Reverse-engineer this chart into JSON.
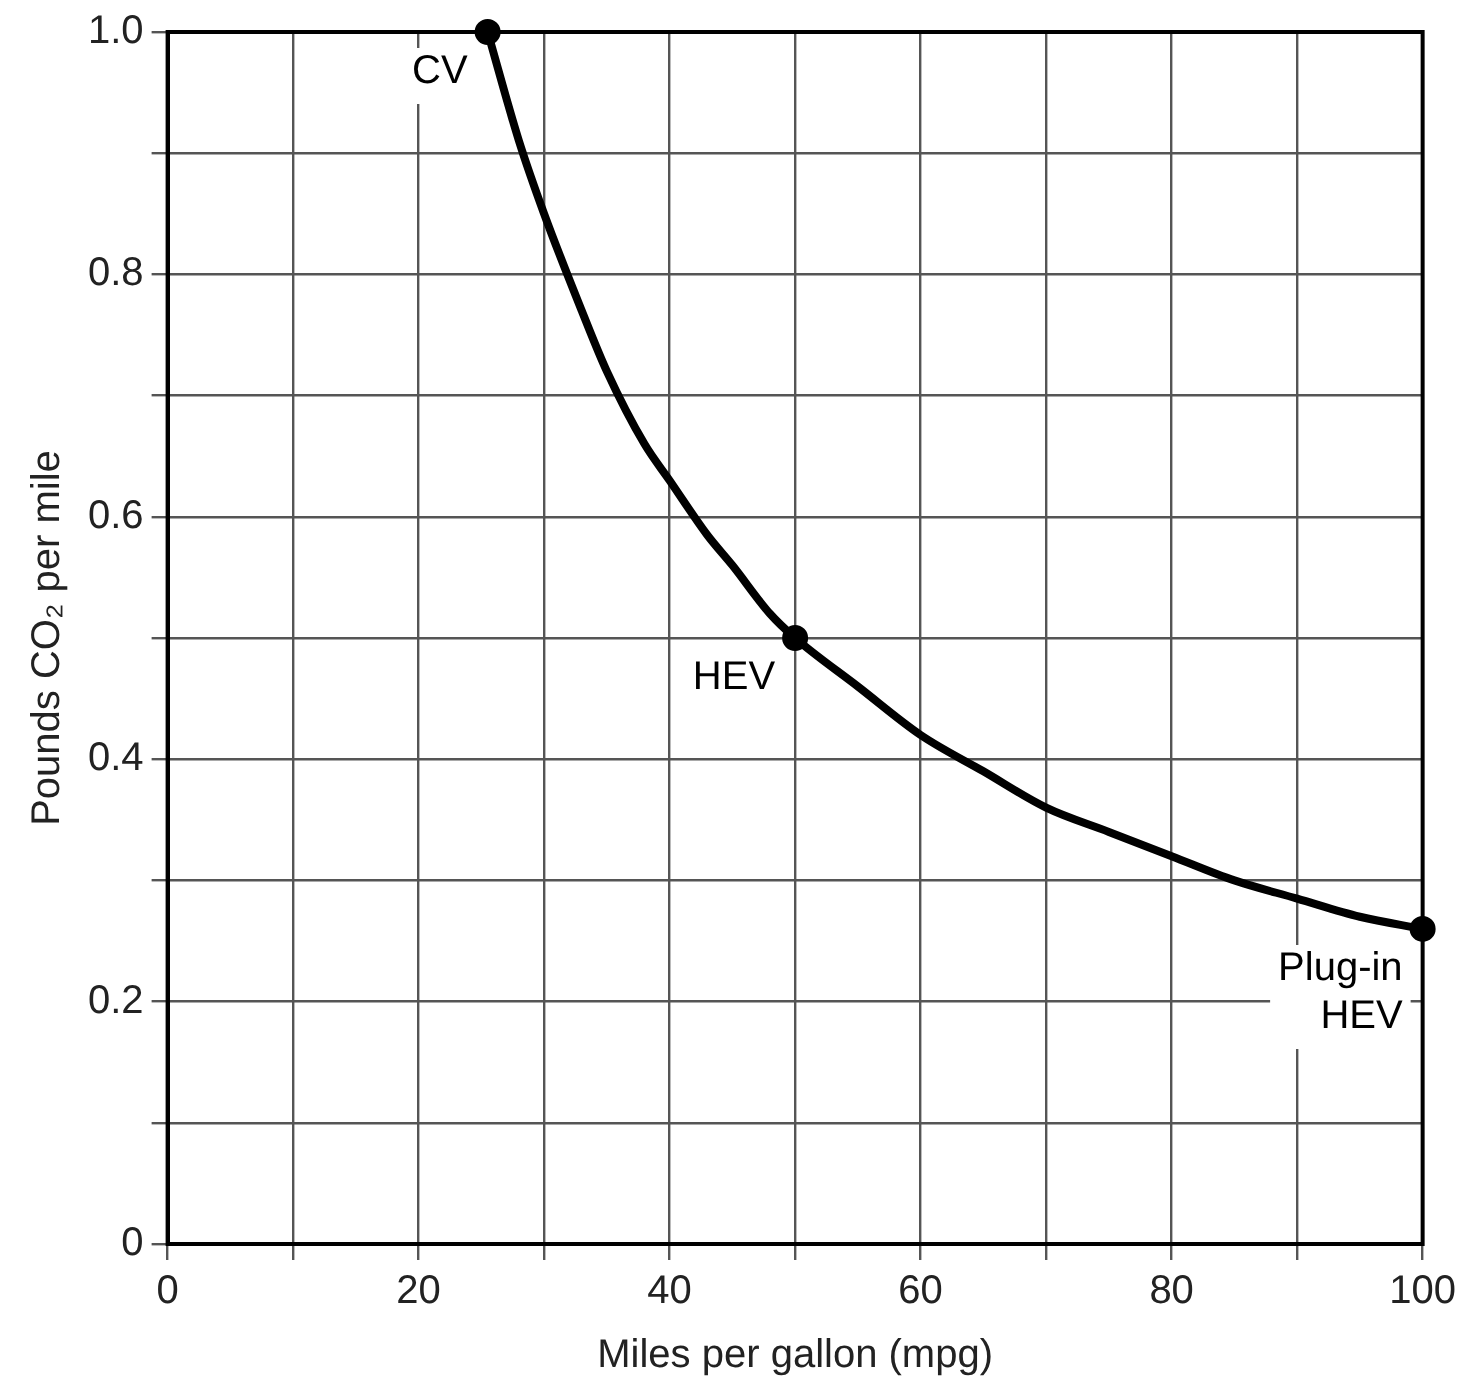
{
  "chart_data": {
    "type": "line",
    "xlabel": "Miles per gallon (mpg)",
    "ylabel": "Pounds CO₂ per mile",
    "xlim": [
      0,
      100
    ],
    "ylim": [
      0,
      1.0
    ],
    "xticks": [
      0,
      {
        "value": 10,
        "label": null
      },
      20,
      {
        "value": 30,
        "label": null
      },
      40,
      {
        "value": 50,
        "label": null
      },
      60,
      {
        "value": 70,
        "label": null
      },
      80,
      {
        "value": 90,
        "label": null
      },
      100
    ],
    "yticks": [
      0,
      {
        "value": 0.1,
        "label": null
      },
      0.2,
      {
        "value": 0.3,
        "label": null
      },
      0.4,
      {
        "value": 0.5,
        "label": null
      },
      0.6,
      {
        "value": 0.7,
        "label": null
      },
      0.8,
      {
        "value": 0.9,
        "label": null
      },
      {
        "value": 1.0,
        "label": "1.0"
      }
    ],
    "grid": true,
    "legend": false,
    "series": [
      {
        "type": "line",
        "color": "#000000",
        "marker": "none",
        "x": [
          25.5,
          28,
          30,
          33,
          35,
          38,
          40,
          43,
          45,
          48,
          50,
          55,
          60,
          65,
          70,
          75,
          80,
          85,
          90,
          95,
          100
        ],
        "values": [
          1.0,
          0.91,
          0.85,
          0.77,
          0.72,
          0.66,
          0.63,
          0.585,
          0.56,
          0.52,
          0.5,
          0.46,
          0.42,
          0.39,
          0.36,
          0.34,
          0.32,
          0.3,
          0.285,
          0.27,
          0.26
        ]
      },
      {
        "type": "scatter",
        "color": "#000000",
        "marker": "circle",
        "x": [
          25.5,
          50,
          100
        ],
        "values": [
          1.0,
          0.5,
          0.26
        ]
      }
    ],
    "annotations": [
      {
        "text": "CV",
        "x": 25.5,
        "y": 1.0
      },
      {
        "text": "HEV",
        "x": 50,
        "y": 0.5
      },
      {
        "text": "Plug-in HEV",
        "x": 100,
        "y": 0.26
      }
    ]
  }
}
